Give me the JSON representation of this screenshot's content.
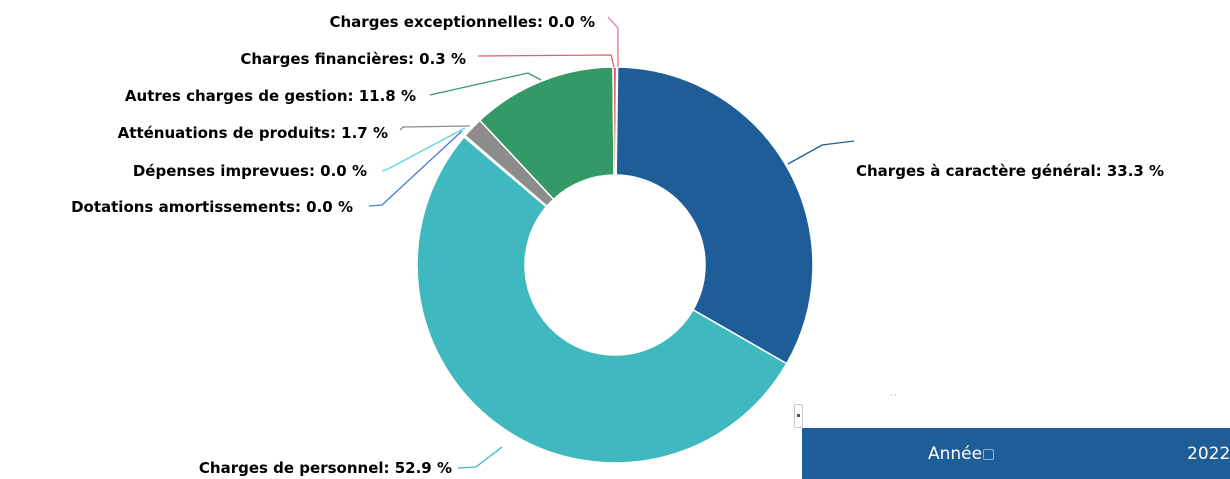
{
  "chart_data": {
    "type": "pie",
    "donut": true,
    "title": "",
    "slices": [
      {
        "label": "Charges à caractère général: 33.3 %",
        "value": 33.3,
        "color": "#1f5d99"
      },
      {
        "label": "Charges de personnel: 52.9 %",
        "value": 52.9,
        "color": "#40b8c0"
      },
      {
        "label": "Dotations amortissements: 0.0 %",
        "value": 0.0,
        "color": "#4a78d8"
      },
      {
        "label": "Dépenses imprevues: 0.0 %",
        "value": 0.0,
        "color": "#5fd8e0"
      },
      {
        "label": "Atténuations de produits: 1.7 %",
        "value": 1.7,
        "color": "#8c8c8c"
      },
      {
        "label": "Autres charges de gestion: 11.8 %",
        "value": 11.8,
        "color": "#339966"
      },
      {
        "label": "Charges financières: 0.3 %",
        "value": 0.3,
        "color": "#e0606a"
      },
      {
        "label": "Charges exceptionnelles: 0.0 %",
        "value": 0.0,
        "color": "#e8788a"
      }
    ]
  },
  "table_header": {
    "column_label": "Année",
    "column_value": "2022"
  },
  "colors": {
    "header_background": "#1f5d99",
    "header_text": "#ffffff"
  }
}
